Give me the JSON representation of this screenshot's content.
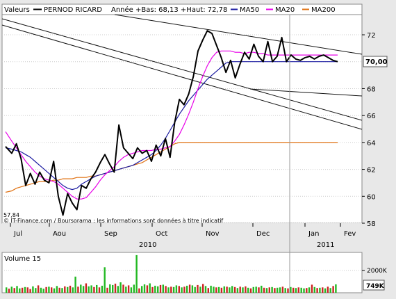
{
  "header": {
    "valeurs_label": "Valeurs",
    "stock_name": "PERNOD RICARD",
    "stats": "Année +Bas: 68,13 +Haut: 72,78",
    "legend": [
      {
        "name": "MA50",
        "color": "#1a1aa0"
      },
      {
        "name": "MA20",
        "color": "#e800e8"
      },
      {
        "name": "MA200",
        "color": "#e07010"
      }
    ]
  },
  "price_panel": {
    "last_value_label": "70,00",
    "min_marker": "57,84",
    "copyright": "© IT-Finance.com / Boursorama : les informations sont données à titre indicatif"
  },
  "volume_panel": {
    "label": "Volume 15",
    "tick_2000k": "2000K",
    "last_volume_label": "749K"
  },
  "colors": {
    "price": "#000000",
    "ma50": "#1a1aa0",
    "ma20": "#e800e8",
    "ma200": "#e07010",
    "vol_up": "#22b822",
    "vol_down": "#cc2222",
    "background": "#ffffff"
  },
  "chart_data": {
    "type": "line",
    "ylim": [
      58,
      73.5
    ],
    "yticks": [
      58,
      60,
      62,
      64,
      66,
      68,
      70,
      72
    ],
    "ytick_labels": [
      "58",
      "60",
      "62",
      "64",
      "66",
      "68",
      "70,00",
      "72"
    ],
    "xaxis": {
      "months": [
        "Jul",
        "Aou",
        "Sep",
        "Oct",
        "Nov",
        "Dec",
        "Jan",
        "Fev"
      ],
      "years": [
        "2010",
        "2011"
      ]
    },
    "x": [
      0,
      4,
      7,
      10,
      13,
      16,
      19,
      22,
      25,
      28,
      31,
      34,
      37,
      40,
      43,
      46,
      49,
      52,
      55,
      58,
      61,
      64,
      67,
      70,
      73,
      76,
      79,
      82,
      85,
      88,
      91,
      94,
      97,
      100,
      103,
      106,
      109,
      112,
      115,
      118,
      121,
      124,
      127,
      130,
      133,
      136,
      139,
      142,
      145,
      148,
      151,
      154,
      157,
      160,
      163,
      166,
      169,
      172,
      175,
      178,
      181,
      184,
      187,
      190,
      193,
      196,
      199,
      202,
      205,
      208,
      211,
      214
    ],
    "series": [
      {
        "name": "PERNOD RICARD",
        "values": [
          63.7,
          63.2,
          63.9,
          62.8,
          60.8,
          61.7,
          60.9,
          61.8,
          61.2,
          61.0,
          62.6,
          60.0,
          58.6,
          60.2,
          59.5,
          59.0,
          60.8,
          60.6,
          61.3,
          61.8,
          62.5,
          63.1,
          62.4,
          61.8,
          65.3,
          63.6,
          63.2,
          62.8,
          63.6,
          63.2,
          63.4,
          62.6,
          63.8,
          63.0,
          64.3,
          62.9,
          65.5,
          67.2,
          66.8,
          67.6,
          68.9,
          70.8,
          71.6,
          72.3,
          72.1,
          71.2,
          70.3,
          69.2,
          70.1,
          68.8,
          69.8,
          70.7,
          70.2,
          71.3,
          70.4,
          70.0,
          71.5,
          70.0,
          70.4,
          71.8,
          70.0,
          70.5,
          70.2,
          70.1,
          70.3,
          70.4,
          70.2,
          70.4,
          70.5,
          70.3,
          70.1,
          70.0
        ]
      },
      {
        "name": "MA20",
        "values": [
          64.8,
          64.1,
          63.6,
          63.1,
          62.6,
          62.2,
          61.8,
          61.5,
          61.3,
          61.2,
          61.1,
          60.9,
          60.6,
          60.3,
          60.0,
          59.8,
          59.8,
          59.9,
          60.3,
          60.7,
          61.2,
          61.6,
          61.9,
          62.2,
          62.6,
          62.9,
          63.1,
          63.2,
          63.3,
          63.4,
          63.4,
          63.4,
          63.5,
          63.5,
          63.6,
          63.7,
          64.1,
          64.6,
          65.3,
          66.1,
          67.0,
          68.0,
          68.9,
          69.7,
          70.3,
          70.7,
          70.8,
          70.8,
          70.8,
          70.7,
          70.7,
          70.6,
          70.7,
          70.7,
          70.6,
          70.6,
          70.5,
          70.5,
          70.5,
          70.5,
          70.5,
          70.5,
          70.5,
          70.5,
          70.5,
          70.5,
          70.5,
          70.5,
          70.5,
          70.5,
          70.5,
          70.5
        ]
      },
      {
        "name": "MA50",
        "values": [
          63.6,
          63.5,
          63.4,
          63.3,
          63.1,
          62.9,
          62.6,
          62.3,
          62.0,
          61.7,
          61.4,
          61.1,
          60.8,
          60.6,
          60.5,
          60.6,
          60.9,
          61.1,
          61.3,
          61.5,
          61.6,
          61.7,
          61.8,
          61.9,
          62.0,
          62.1,
          62.2,
          62.3,
          62.5,
          62.7,
          62.9,
          63.1,
          63.4,
          63.8,
          64.3,
          64.9,
          65.5,
          66.1,
          66.6,
          67.1,
          67.5,
          67.9,
          68.3,
          68.7,
          69.0,
          69.3,
          69.6,
          69.9,
          70.0,
          70.0,
          70.0,
          70.0,
          70.0,
          70.0,
          70.0,
          70.0,
          70.0,
          70.0,
          70.0,
          70.0,
          70.0,
          70.0,
          70.0,
          70.0,
          70.0,
          70.0,
          70.0,
          70.0,
          70.0,
          70.0,
          70.0,
          70.0
        ]
      },
      {
        "name": "MA200",
        "values": [
          60.3,
          60.4,
          60.6,
          60.7,
          60.8,
          60.9,
          61.0,
          61.1,
          61.1,
          61.1,
          61.2,
          61.2,
          61.3,
          61.3,
          61.3,
          61.4,
          61.4,
          61.4,
          61.5,
          61.5,
          61.6,
          61.7,
          61.8,
          61.9,
          62.0,
          62.1,
          62.2,
          62.3,
          62.4,
          62.5,
          62.7,
          62.9,
          63.1,
          63.3,
          63.5,
          63.7,
          63.9,
          64.0,
          64.0,
          64.0,
          64.0,
          64.0,
          64.0,
          64.0,
          64.0,
          64.0,
          64.0,
          64.0,
          64.0,
          64.0,
          64.0,
          64.0,
          64.0,
          64.0,
          64.0,
          64.0,
          64.0,
          64.0,
          64.0,
          64.0,
          64.0,
          64.0,
          64.0,
          64.0,
          64.0,
          64.0,
          64.0,
          64.0,
          64.0,
          64.0,
          64.0,
          64.0
        ]
      }
    ],
    "volume": {
      "ylim_k": [
        0,
        3600
      ],
      "values_k": [
        480,
        360,
        540,
        420,
        600,
        390,
        450,
        510,
        480,
        330,
        570,
        420,
        660,
        450,
        360,
        510,
        540,
        480,
        390,
        600,
        450,
        420,
        570,
        510,
        630,
        480,
        1440,
        540,
        720,
        600,
        840,
        570,
        660,
        510,
        690,
        480,
        630,
        2280,
        450,
        750,
        690,
        810,
        600,
        930,
        720,
        540,
        660,
        480,
        720,
        3360,
        390,
        600,
        750,
        660,
        840,
        510,
        630,
        570,
        690,
        720,
        600,
        480,
        540,
        510,
        660,
        600,
        480,
        540,
        630,
        720,
        660,
        510,
        690,
        540,
        780,
        600,
        420,
        630,
        540,
        480,
        510,
        450,
        570,
        540,
        480,
        600,
        510,
        420,
        540,
        480,
        570,
        450,
        390,
        510,
        540,
        480,
        630,
        450,
        420,
        480,
        510,
        420,
        450,
        480,
        540,
        420,
        390,
        510,
        450,
        420,
        480,
        450,
        390,
        420,
        480,
        720,
        510,
        420,
        450,
        480,
        390,
        540,
        420,
        600,
        750
      ],
      "up_flags": [
        1,
        0,
        1,
        0,
        1,
        1,
        0,
        1,
        0,
        0,
        1,
        1,
        0,
        1,
        1,
        0,
        1,
        0,
        1,
        1,
        0,
        1,
        0,
        1,
        0,
        1,
        1,
        0,
        1,
        1,
        0,
        1,
        1,
        0,
        1,
        0,
        1,
        1,
        0,
        1,
        1,
        0,
        1,
        1,
        0,
        1,
        0,
        1,
        1,
        1,
        0,
        1,
        1,
        0,
        1,
        0,
        1,
        1,
        0,
        1,
        0,
        1,
        0,
        1,
        1,
        0,
        1,
        0,
        1,
        0,
        1,
        1,
        0,
        1,
        0,
        1,
        0,
        1,
        1,
        0,
        1,
        0,
        1,
        0,
        1,
        1,
        0,
        1,
        0,
        1,
        0,
        1,
        0,
        1,
        1,
        0,
        1,
        0,
        1,
        0,
        1,
        0,
        1,
        1,
        0,
        1,
        0,
        1,
        0,
        1,
        0,
        1,
        1,
        0,
        1,
        0,
        1,
        0,
        1,
        0,
        1,
        0,
        1,
        0,
        1
      ]
    }
  }
}
